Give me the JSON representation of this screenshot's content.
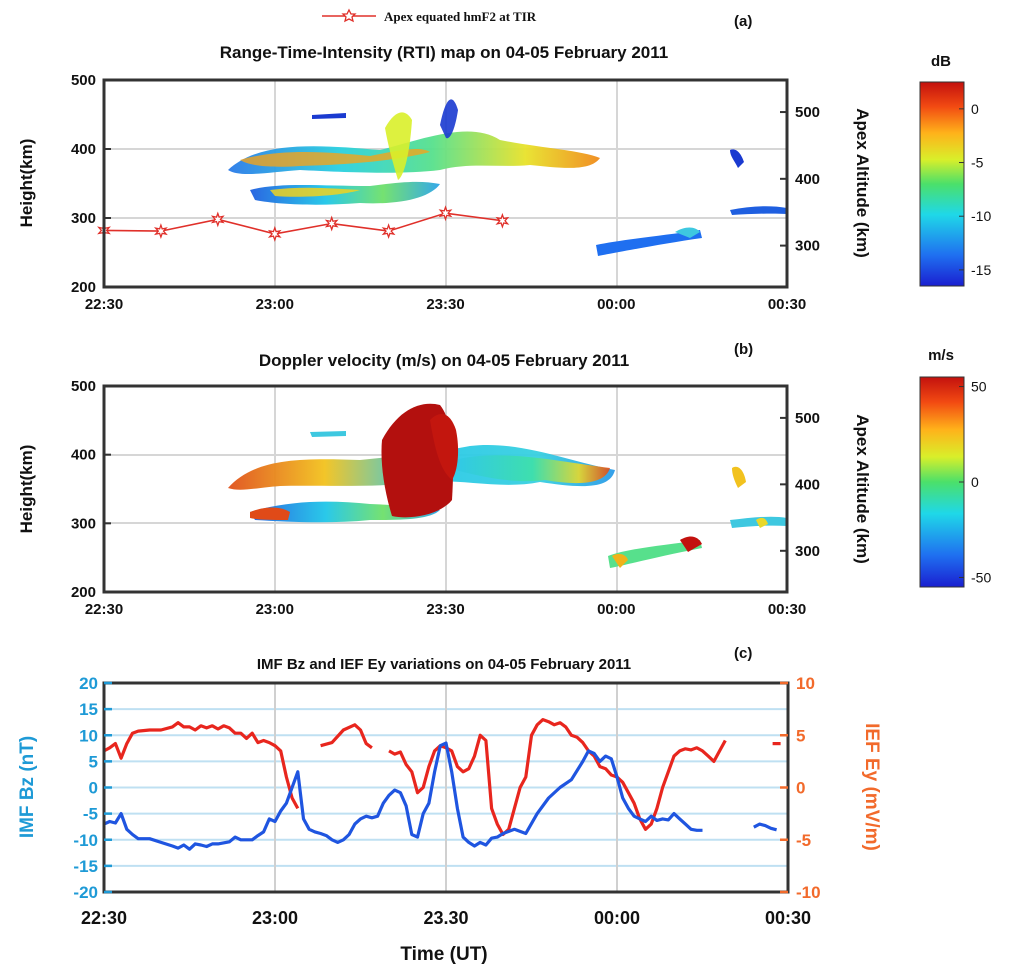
{
  "legend": {
    "label": "Apex equated hmF2 at TIR",
    "color": "#e0302a"
  },
  "colors": {
    "bz": "#1f55e0",
    "ey": "#e8261e",
    "bz_axis": "#1e9ad6",
    "ey_axis": "#f26a2b",
    "grid_c": "#bfe0f2"
  },
  "chart_data": [
    {
      "panel_label": "(a)",
      "type": "heatmap",
      "title": "Range-Time-Intensity (RTI) map on 04-05 February 2011",
      "ylabel": "Height(km)",
      "y2label": "Apex Altitude (km)",
      "xticks": [
        "22:30",
        "23:00",
        "23:30",
        "00:00",
        "00:30"
      ],
      "yticks": [
        200,
        300,
        400,
        500
      ],
      "ylim": [
        200,
        500
      ],
      "y2ticks": [
        300,
        400,
        500
      ],
      "y2lim": [
        238,
        548
      ],
      "colorbar": {
        "title": "dB",
        "ticks": [
          0,
          -5,
          -10,
          -15
        ],
        "range": [
          -16.5,
          2.5
        ]
      },
      "grid": true,
      "hmf2_series": {
        "name": "Apex equated hmF2 at TIR",
        "x": [
          "22:30",
          "22:40",
          "22:50",
          "23:00",
          "23:10",
          "23:20",
          "23:30",
          "23:40"
        ],
        "y": [
          282,
          281,
          298,
          277,
          292,
          281,
          307,
          296
        ]
      }
    },
    {
      "panel_label": "(b)",
      "type": "heatmap",
      "title": "Doppler velocity (m/s) on 04-05 February 2011",
      "ylabel": "Height(km)",
      "y2label": "Apex Altitude (km)",
      "xticks": [
        "22:30",
        "23:00",
        "23:30",
        "00:00",
        "00:30"
      ],
      "yticks": [
        200,
        300,
        400,
        500
      ],
      "ylim": [
        200,
        500
      ],
      "y2ticks": [
        300,
        400,
        500
      ],
      "y2lim": [
        238,
        548
      ],
      "colorbar": {
        "title": "m/s",
        "ticks": [
          50,
          0,
          -50
        ],
        "range": [
          -55,
          55
        ]
      },
      "grid": true
    },
    {
      "panel_label": "(c)",
      "type": "line",
      "title": "IMF Bz and IEF Ey variations on 04-05 February 2011",
      "xlabel": "Time (UT)",
      "ylabel": "IMF Bz (nT)",
      "y2label": "IEF Ey (mV/m)",
      "xticks": [
        "22:30",
        "23:00",
        "23.30",
        "00:00",
        "00:30"
      ],
      "yticks": [
        20,
        15,
        10,
        5,
        0,
        -5,
        -10,
        -15,
        -20
      ],
      "ylim": [
        -20,
        20
      ],
      "y2ticks": [
        10,
        5,
        0,
        -5,
        -10
      ],
      "y2lim": [
        -10,
        10
      ],
      "grid": true,
      "bz_segments": [
        [
          [
            0,
            -7
          ],
          [
            1,
            -6.5
          ],
          [
            2,
            -6.8
          ],
          [
            3,
            -5
          ],
          [
            4,
            -8
          ],
          [
            5,
            -9
          ],
          [
            6,
            -9.8
          ],
          [
            8,
            -9.8
          ],
          [
            10,
            -10.5
          ],
          [
            12,
            -11.2
          ],
          [
            13,
            -11.6
          ],
          [
            14,
            -11
          ],
          [
            15,
            -11.8
          ],
          [
            16,
            -10.8
          ],
          [
            17,
            -11
          ],
          [
            18,
            -11.3
          ],
          [
            19,
            -10.8
          ],
          [
            20,
            -10.8
          ],
          [
            22,
            -10.4
          ],
          [
            23,
            -9.5
          ],
          [
            24,
            -10
          ],
          [
            25,
            -10
          ],
          [
            26,
            -10
          ],
          [
            27,
            -9.2
          ],
          [
            28,
            -8.5
          ],
          [
            29,
            -6
          ],
          [
            30,
            -6.5
          ],
          [
            31,
            -4.5
          ],
          [
            32,
            -3
          ],
          [
            33,
            0
          ],
          [
            34,
            3
          ],
          [
            35,
            -6
          ],
          [
            36,
            -8
          ],
          [
            37,
            -8.5
          ],
          [
            38,
            -8.8
          ],
          [
            39,
            -9.2
          ],
          [
            40,
            -10
          ],
          [
            41,
            -10.5
          ],
          [
            42,
            -10
          ],
          [
            43,
            -9
          ],
          [
            44,
            -7
          ],
          [
            45,
            -6
          ],
          [
            46,
            -5.5
          ],
          [
            47,
            -5.8
          ],
          [
            48,
            -5.5
          ],
          [
            49,
            -3
          ],
          [
            50,
            -1.5
          ],
          [
            51,
            -0.5
          ],
          [
            52,
            -1
          ],
          [
            53,
            -3.5
          ],
          [
            54,
            -9
          ],
          [
            55,
            -9.5
          ],
          [
            56,
            -5
          ],
          [
            57,
            -3
          ],
          [
            58,
            3
          ],
          [
            59,
            8
          ],
          [
            60,
            8.5
          ],
          [
            61,
            3
          ],
          [
            62,
            -4
          ],
          [
            63,
            -9.5
          ],
          [
            64,
            -10.5
          ],
          [
            65,
            -11.2
          ],
          [
            66,
            -10.5
          ],
          [
            67,
            -11
          ],
          [
            68,
            -9.7
          ],
          [
            69,
            -9.5
          ],
          [
            70,
            -8.8
          ],
          [
            72,
            -8
          ],
          [
            74,
            -8.8
          ],
          [
            76,
            -5
          ],
          [
            78,
            -2
          ],
          [
            80,
            0
          ],
          [
            82,
            1.5
          ],
          [
            84,
            5
          ],
          [
            85,
            7
          ],
          [
            86,
            6.5
          ],
          [
            87,
            5
          ],
          [
            88,
            6
          ],
          [
            89,
            5.5
          ],
          [
            90,
            2
          ],
          [
            91,
            -2
          ],
          [
            92,
            -4
          ],
          [
            93,
            -5.5
          ],
          [
            94,
            -6
          ],
          [
            95,
            -6.5
          ],
          [
            96,
            -5.5
          ],
          [
            97,
            -6.3
          ],
          [
            98,
            -6
          ],
          [
            99,
            -6.2
          ],
          [
            100,
            -5
          ],
          [
            101,
            -6
          ],
          [
            102,
            -7
          ],
          [
            103,
            -8
          ],
          [
            104,
            -8.2
          ],
          [
            105,
            -8.2
          ]
        ],
        [
          [
            114,
            -7.6
          ],
          [
            115,
            -7
          ],
          [
            116,
            -7.3
          ],
          [
            117,
            -7.8
          ],
          [
            118,
            -8.1
          ]
        ]
      ],
      "ey_segments": [
        [
          [
            0,
            3.5
          ],
          [
            1,
            3.8
          ],
          [
            2,
            4.2
          ],
          [
            3,
            2.8
          ],
          [
            4,
            4.2
          ],
          [
            5,
            5.2
          ],
          [
            6,
            5.4
          ],
          [
            8,
            5.5
          ],
          [
            10,
            5.5
          ],
          [
            12,
            5.8
          ],
          [
            13,
            6.2
          ],
          [
            14,
            5.8
          ],
          [
            15,
            5.8
          ],
          [
            16,
            5.5
          ],
          [
            17,
            5.9
          ],
          [
            18,
            5.7
          ],
          [
            19,
            5.9
          ],
          [
            20,
            5.6
          ],
          [
            21,
            5.9
          ],
          [
            22,
            5.7
          ],
          [
            23,
            5.2
          ],
          [
            24,
            5.2
          ],
          [
            25,
            4.7
          ],
          [
            26,
            5.2
          ],
          [
            27,
            4.3
          ],
          [
            28,
            4.5
          ],
          [
            29,
            4.3
          ],
          [
            30,
            4
          ],
          [
            31,
            3.5
          ],
          [
            32,
            1
          ],
          [
            33,
            -1
          ],
          [
            34,
            -2
          ]
        ],
        [
          [
            38,
            4
          ],
          [
            40,
            4.3
          ],
          [
            42,
            5.5
          ],
          [
            44,
            6
          ],
          [
            45,
            5.5
          ],
          [
            46,
            4.2
          ],
          [
            47,
            3.8
          ]
        ],
        [
          [
            50,
            3.5
          ],
          [
            51,
            3.2
          ],
          [
            52,
            3.4
          ],
          [
            53,
            2.2
          ],
          [
            54,
            1.5
          ],
          [
            55,
            -0.5
          ],
          [
            56,
            0
          ],
          [
            57,
            2
          ],
          [
            58,
            3.5
          ],
          [
            59,
            4
          ],
          [
            60,
            3.8
          ],
          [
            61,
            3.5
          ],
          [
            62,
            2
          ],
          [
            63,
            1.5
          ],
          [
            64,
            1.8
          ],
          [
            65,
            3
          ],
          [
            66,
            5
          ],
          [
            67,
            4.5
          ],
          [
            68,
            -2
          ],
          [
            69,
            -3.5
          ],
          [
            70,
            -4.5
          ],
          [
            71,
            -4
          ],
          [
            72,
            -2
          ],
          [
            73,
            0
          ],
          [
            74,
            1
          ],
          [
            75,
            5
          ],
          [
            76,
            6
          ],
          [
            77,
            6.5
          ],
          [
            78,
            6.3
          ],
          [
            79,
            6
          ],
          [
            80,
            6.2
          ],
          [
            81,
            5.8
          ],
          [
            82,
            5
          ],
          [
            83,
            4.8
          ],
          [
            84,
            4.3
          ],
          [
            85,
            3.5
          ],
          [
            86,
            3
          ],
          [
            87,
            2
          ],
          [
            88,
            1.8
          ],
          [
            89,
            1.2
          ],
          [
            90,
            1
          ],
          [
            91,
            0.5
          ],
          [
            92,
            -0.5
          ],
          [
            93,
            -1.5
          ],
          [
            94,
            -3
          ],
          [
            95,
            -4
          ],
          [
            96,
            -3.5
          ],
          [
            97,
            -2
          ],
          [
            98,
            0
          ],
          [
            99,
            1.5
          ],
          [
            100,
            3
          ],
          [
            101,
            3.5
          ],
          [
            102,
            3.7
          ],
          [
            103,
            3.6
          ],
          [
            104,
            3.8
          ],
          [
            105,
            3.5
          ],
          [
            106,
            3
          ],
          [
            107,
            2.5
          ],
          [
            108,
            3.5
          ],
          [
            109,
            4.5
          ]
        ],
        [
          [
            118,
            4.2
          ]
        ]
      ],
      "x_domain": [
        0,
        120
      ]
    }
  ]
}
